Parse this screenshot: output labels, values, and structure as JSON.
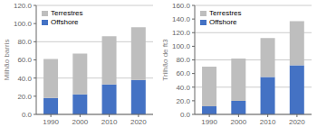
{
  "chart_data": [
    {
      "type": "bar",
      "stacked": true,
      "ylabel": "Milhão barris",
      "categories": [
        "1990",
        "2000",
        "2010",
        "2020"
      ],
      "series": [
        {
          "name": "Offshore",
          "color": "#4472C4",
          "values": [
            18,
            22,
            33,
            38
          ]
        },
        {
          "name": "Terrestres",
          "color": "#BEBEBE",
          "values": [
            43,
            45,
            53,
            58
          ]
        }
      ],
      "ylim": [
        0,
        120
      ],
      "yticks": [
        {
          "value": 0,
          "label": "0.0"
        },
        {
          "value": 20,
          "label": "20.0"
        },
        {
          "value": 40,
          "label": "40.0"
        },
        {
          "value": 60,
          "label": "60.0"
        },
        {
          "value": 80,
          "label": "80.0"
        },
        {
          "value": 100,
          "label": "100.0"
        },
        {
          "value": 120,
          "label": "120.0"
        }
      ],
      "grid": true,
      "legend": "upper left"
    },
    {
      "type": "bar",
      "stacked": true,
      "ylabel": "Trilhão de ft3",
      "categories": [
        "1990",
        "2000",
        "2010",
        "2020"
      ],
      "series": [
        {
          "name": "Offshore",
          "color": "#4472C4",
          "values": [
            12,
            20,
            55,
            72
          ]
        },
        {
          "name": "Terrestres",
          "color": "#BEBEBE",
          "values": [
            58,
            62,
            57,
            65
          ]
        }
      ],
      "ylim": [
        0,
        160
      ],
      "yticks": [
        {
          "value": 0,
          "label": "0.0"
        },
        {
          "value": 20,
          "label": "20.0"
        },
        {
          "value": 40,
          "label": "40.0"
        },
        {
          "value": 60,
          "label": "60.0"
        },
        {
          "value": 80,
          "label": "80.0"
        },
        {
          "value": 100,
          "label": "100.0"
        },
        {
          "value": 120,
          "label": "120.0"
        },
        {
          "value": 140,
          "label": "140.0"
        },
        {
          "value": 160,
          "label": "160.0"
        }
      ],
      "grid": true,
      "legend": "upper left"
    }
  ]
}
